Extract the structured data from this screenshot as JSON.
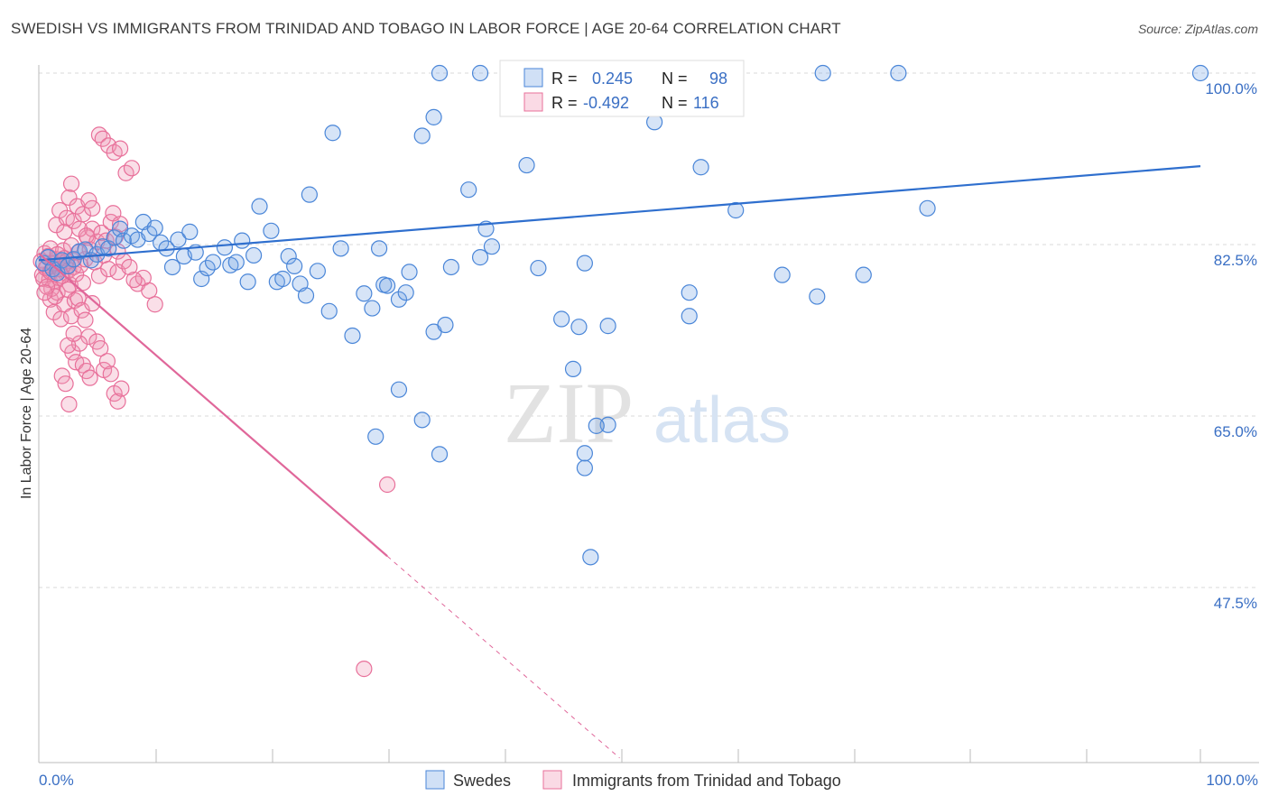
{
  "title": "SWEDISH VS IMMIGRANTS FROM TRINIDAD AND TOBAGO IN LABOR FORCE | AGE 20-64 CORRELATION CHART",
  "source": "Source: ZipAtlas.com",
  "colors": {
    "blue": "#4a86d8",
    "blue_fill": "rgba(120,165,230,0.30)",
    "blue_line": "#2f6fce",
    "pink": "#e8709a",
    "pink_fill": "rgba(240,150,180,0.30)",
    "pink_line": "#e0679a",
    "grid": "#d8d8d8",
    "tick_label": "#3a6fc4"
  },
  "chart_data": {
    "type": "scatter",
    "ylabel": "In Labor Force | Age 20-64",
    "xlabel": "",
    "xlim": [
      0,
      100
    ],
    "ylim": [
      32.5,
      101.5
    ],
    "x_ticks": [
      "0.0%",
      "100.0%"
    ],
    "y_ticks": [
      {
        "value": 100.0,
        "label": "100.0%"
      },
      {
        "value": 82.5,
        "label": "82.5%"
      },
      {
        "value": 65.0,
        "label": "65.0%"
      },
      {
        "value": 47.5,
        "label": "47.5%"
      }
    ],
    "grid": true,
    "legend_position": "top-center",
    "watermark": {
      "zip": "ZIP",
      "atlas": "atlas"
    },
    "legend": [
      {
        "r_label": "R =",
        "r_value": "0.245",
        "n_label": "N =",
        "n_value": "98"
      },
      {
        "r_label": "R =",
        "r_value": "-0.492",
        "n_label": "N =",
        "n_value": "116"
      }
    ],
    "series": [
      {
        "name": "Swedes",
        "color": "#4a86d8",
        "trend": {
          "x": [
            0,
            100
          ],
          "y": [
            80.9,
            90.5
          ]
        },
        "points": [
          [
            0.4,
            80.6
          ],
          [
            0.8,
            81.2
          ],
          [
            1.2,
            80.0
          ],
          [
            1.6,
            79.6
          ],
          [
            2.0,
            80.9
          ],
          [
            2.5,
            80.3
          ],
          [
            3.0,
            81.0
          ],
          [
            3.5,
            81.8
          ],
          [
            4.0,
            82.0
          ],
          [
            4.5,
            80.9
          ],
          [
            5.0,
            81.5
          ],
          [
            5.5,
            82.3
          ],
          [
            6.0,
            82.1
          ],
          [
            6.5,
            83.2
          ],
          [
            7.0,
            84.1
          ],
          [
            7.3,
            82.9
          ],
          [
            8.0,
            83.4
          ],
          [
            8.5,
            83.0
          ],
          [
            9.0,
            84.8
          ],
          [
            9.5,
            83.6
          ],
          [
            10.0,
            84.2
          ],
          [
            10.5,
            82.7
          ],
          [
            11.0,
            82.1
          ],
          [
            11.5,
            80.2
          ],
          [
            12.0,
            83.0
          ],
          [
            12.5,
            81.3
          ],
          [
            13.0,
            83.8
          ],
          [
            13.5,
            81.7
          ],
          [
            14.0,
            79.0
          ],
          [
            14.5,
            80.1
          ],
          [
            15.0,
            80.7
          ],
          [
            16.0,
            82.2
          ],
          [
            16.5,
            80.4
          ],
          [
            17.0,
            80.7
          ],
          [
            17.5,
            82.9
          ],
          [
            18.0,
            78.7
          ],
          [
            18.5,
            81.4
          ],
          [
            19.0,
            86.4
          ],
          [
            20.0,
            83.9
          ],
          [
            20.5,
            78.7
          ],
          [
            21.0,
            79.0
          ],
          [
            21.5,
            81.3
          ],
          [
            22.0,
            80.3
          ],
          [
            22.5,
            78.5
          ],
          [
            23.0,
            77.3
          ],
          [
            23.3,
            87.6
          ],
          [
            24.0,
            79.8
          ],
          [
            25.0,
            75.7
          ],
          [
            25.3,
            93.9
          ],
          [
            26.0,
            82.1
          ],
          [
            27.0,
            73.2
          ],
          [
            28.0,
            77.5
          ],
          [
            28.7,
            76.0
          ],
          [
            29.3,
            82.1
          ],
          [
            29.7,
            78.4
          ],
          [
            30.0,
            78.3
          ],
          [
            31.0,
            76.9
          ],
          [
            31.6,
            77.6
          ],
          [
            31.9,
            79.7
          ],
          [
            31.0,
            67.7
          ],
          [
            29.0,
            62.9
          ],
          [
            33.0,
            64.6
          ],
          [
            34.0,
            73.6
          ],
          [
            34.0,
            95.5
          ],
          [
            33.0,
            93.6
          ],
          [
            35.0,
            74.3
          ],
          [
            34.5,
            61.1
          ],
          [
            35.5,
            80.2
          ],
          [
            37.0,
            88.1
          ],
          [
            38.0,
            81.2
          ],
          [
            38.5,
            84.1
          ],
          [
            39.0,
            82.3
          ],
          [
            42.0,
            90.6
          ],
          [
            43.0,
            80.1
          ],
          [
            45.0,
            74.9
          ],
          [
            46.5,
            74.1
          ],
          [
            46.0,
            69.8
          ],
          [
            47.0,
            80.6
          ],
          [
            47.0,
            59.7
          ],
          [
            47.0,
            61.2
          ],
          [
            49.0,
            74.2
          ],
          [
            49.0,
            64.1
          ],
          [
            53.0,
            95.0
          ],
          [
            56.0,
            77.6
          ],
          [
            56.0,
            75.2
          ],
          [
            57.0,
            90.4
          ],
          [
            60.0,
            86.0
          ],
          [
            64.0,
            79.4
          ],
          [
            71.0,
            79.4
          ],
          [
            34.5,
            100.0
          ],
          [
            38.0,
            100.0
          ],
          [
            47.5,
            100.0
          ],
          [
            67.5,
            100.0
          ],
          [
            74.0,
            100.0
          ],
          [
            100.0,
            100.0
          ],
          [
            48.0,
            64.0
          ],
          [
            47.5,
            50.6
          ],
          [
            67.0,
            77.2
          ],
          [
            76.5,
            86.2
          ]
        ]
      },
      {
        "name": "Immigrants from Trinidad and Tobago",
        "color": "#e8709a",
        "trend": {
          "x": [
            0,
            30
          ],
          "y": [
            81.6,
            50.7
          ]
        },
        "trend_dashed": {
          "x": [
            30,
            50
          ],
          "y": [
            50.7,
            30.1
          ]
        },
        "points": [
          [
            0.2,
            80.8
          ],
          [
            0.3,
            79.4
          ],
          [
            0.5,
            81.6
          ],
          [
            0.7,
            80.2
          ],
          [
            0.9,
            78.9
          ],
          [
            1.0,
            82.1
          ],
          [
            1.1,
            79.8
          ],
          [
            1.3,
            80.5
          ],
          [
            1.5,
            81.0
          ],
          [
            1.7,
            79.1
          ],
          [
            1.9,
            80.7
          ],
          [
            2.1,
            81.9
          ],
          [
            2.3,
            79.6
          ],
          [
            2.5,
            80.3
          ],
          [
            2.7,
            78.4
          ],
          [
            2.9,
            80.9
          ],
          [
            0.4,
            79.0
          ],
          [
            0.6,
            80.1
          ],
          [
            0.8,
            81.3
          ],
          [
            1.0,
            79.7
          ],
          [
            1.2,
            80.6
          ],
          [
            1.4,
            78.8
          ],
          [
            1.6,
            81.5
          ],
          [
            1.8,
            80.0
          ],
          [
            2.0,
            79.3
          ],
          [
            2.2,
            81.1
          ],
          [
            2.4,
            80.8
          ],
          [
            2.6,
            79.9
          ],
          [
            2.8,
            82.4
          ],
          [
            3.0,
            80.2
          ],
          [
            3.2,
            79.5
          ],
          [
            3.4,
            81.7
          ],
          [
            3.6,
            80.4
          ],
          [
            3.8,
            78.6
          ],
          [
            4.0,
            81.0
          ],
          [
            4.2,
            83.2
          ],
          [
            4.4,
            82.0
          ],
          [
            4.6,
            84.1
          ],
          [
            4.8,
            80.7
          ],
          [
            5.0,
            82.8
          ],
          [
            5.2,
            79.3
          ],
          [
            5.4,
            83.7
          ],
          [
            5.6,
            81.4
          ],
          [
            5.8,
            82.9
          ],
          [
            6.0,
            80.0
          ],
          [
            6.2,
            84.8
          ],
          [
            6.4,
            85.7
          ],
          [
            6.6,
            83.3
          ],
          [
            6.8,
            81.8
          ],
          [
            7.0,
            84.6
          ],
          [
            1.5,
            84.5
          ],
          [
            1.8,
            86.0
          ],
          [
            2.2,
            83.8
          ],
          [
            2.4,
            85.2
          ],
          [
            2.6,
            87.3
          ],
          [
            2.8,
            88.7
          ],
          [
            3.0,
            84.9
          ],
          [
            3.3,
            86.4
          ],
          [
            3.5,
            84.1
          ],
          [
            3.8,
            85.6
          ],
          [
            4.1,
            83.4
          ],
          [
            4.3,
            87.0
          ],
          [
            4.6,
            86.2
          ],
          [
            1.0,
            76.9
          ],
          [
            1.3,
            75.6
          ],
          [
            1.6,
            77.6
          ],
          [
            1.9,
            74.9
          ],
          [
            2.2,
            76.4
          ],
          [
            2.5,
            77.9
          ],
          [
            2.8,
            75.2
          ],
          [
            3.1,
            76.8
          ],
          [
            3.4,
            77.0
          ],
          [
            3.7,
            75.8
          ],
          [
            4.0,
            74.8
          ],
          [
            4.3,
            73.1
          ],
          [
            4.6,
            76.5
          ],
          [
            5.0,
            72.6
          ],
          [
            5.3,
            71.9
          ],
          [
            5.6,
            69.7
          ],
          [
            5.9,
            70.6
          ],
          [
            6.2,
            69.3
          ],
          [
            6.5,
            67.3
          ],
          [
            6.8,
            66.5
          ],
          [
            7.1,
            67.8
          ],
          [
            2.0,
            69.1
          ],
          [
            2.3,
            68.3
          ],
          [
            2.6,
            66.2
          ],
          [
            2.9,
            71.5
          ],
          [
            3.2,
            70.5
          ],
          [
            3.5,
            72.4
          ],
          [
            3.8,
            70.2
          ],
          [
            4.1,
            69.6
          ],
          [
            4.4,
            68.9
          ],
          [
            5.2,
            93.7
          ],
          [
            5.5,
            93.3
          ],
          [
            6.0,
            92.6
          ],
          [
            6.5,
            91.9
          ],
          [
            7.0,
            92.3
          ],
          [
            7.5,
            89.8
          ],
          [
            8.0,
            90.3
          ],
          [
            8.5,
            78.5
          ],
          [
            9.0,
            79.1
          ],
          [
            9.5,
            77.8
          ],
          [
            10.0,
            76.4
          ],
          [
            2.5,
            72.2
          ],
          [
            3.0,
            73.4
          ],
          [
            1.1,
            78.0
          ],
          [
            1.4,
            77.2
          ],
          [
            0.7,
            78.2
          ],
          [
            0.5,
            77.6
          ],
          [
            6.8,
            79.7
          ],
          [
            7.3,
            80.8
          ],
          [
            7.8,
            80.2
          ],
          [
            8.2,
            78.9
          ],
          [
            28.0,
            39.2
          ],
          [
            30.0,
            58.0
          ]
        ]
      }
    ]
  },
  "bottom_legend": [
    {
      "label": "Swedes"
    },
    {
      "label": "Immigrants from Trinidad and Tobago"
    }
  ]
}
